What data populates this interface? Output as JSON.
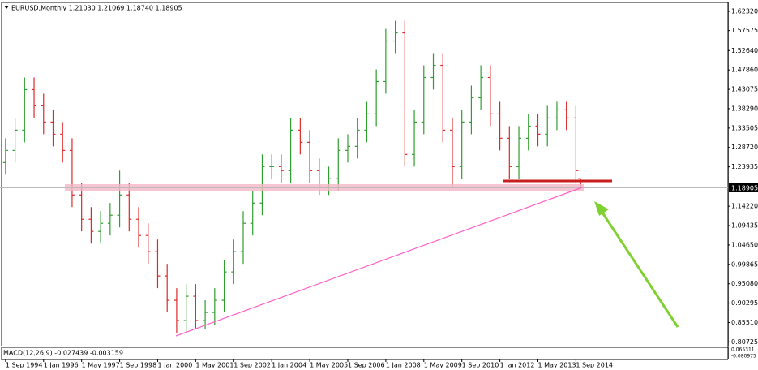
{
  "chart_data": {
    "type": "ohlc",
    "title": "EURUSD,Monthly  1.21030 1.21069 1.18740 1.18905",
    "x": [
      0,
      4,
      8,
      12,
      16,
      20,
      24,
      28,
      32,
      36,
      40,
      44,
      48,
      52,
      56,
      60,
      64,
      68,
      72,
      76,
      80,
      84,
      88,
      92,
      96,
      100,
      104,
      108,
      112,
      116,
      120,
      124,
      128,
      132,
      136,
      140,
      144,
      148,
      152,
      156,
      160,
      164,
      168,
      172,
      176,
      180,
      184,
      188,
      192,
      196,
      200,
      204,
      208,
      212,
      216,
      220,
      224,
      228,
      232,
      236,
      240,
      242
    ],
    "open": [
      1.25,
      1.28,
      1.33,
      1.43,
      1.39,
      1.35,
      1.32,
      1.28,
      1.17,
      1.11,
      1.08,
      1.1,
      1.12,
      1.17,
      1.11,
      1.07,
      1.03,
      0.97,
      0.91,
      0.86,
      0.92,
      0.86,
      0.88,
      0.91,
      0.98,
      1.03,
      1.1,
      1.15,
      1.24,
      1.24,
      1.23,
      1.33,
      1.3,
      1.23,
      1.19,
      1.21,
      1.28,
      1.29,
      1.33,
      1.37,
      1.45,
      1.55,
      1.57,
      1.27,
      1.35,
      1.46,
      1.49,
      1.33,
      1.24,
      1.35,
      1.41,
      1.46,
      1.37,
      1.31,
      1.24,
      1.31,
      1.34,
      1.32,
      1.36,
      1.38,
      1.36,
      1.2103
    ],
    "high": [
      1.31,
      1.36,
      1.46,
      1.46,
      1.42,
      1.38,
      1.35,
      1.31,
      1.2,
      1.14,
      1.13,
      1.15,
      1.23,
      1.2,
      1.14,
      1.1,
      1.06,
      1.0,
      0.94,
      0.95,
      0.95,
      0.91,
      0.94,
      1.01,
      1.06,
      1.13,
      1.18,
      1.27,
      1.27,
      1.27,
      1.36,
      1.36,
      1.33,
      1.26,
      1.24,
      1.31,
      1.32,
      1.36,
      1.4,
      1.48,
      1.58,
      1.6,
      1.6,
      1.38,
      1.49,
      1.52,
      1.52,
      1.36,
      1.38,
      1.44,
      1.49,
      1.49,
      1.4,
      1.34,
      1.34,
      1.37,
      1.37,
      1.39,
      1.4,
      1.4,
      1.39,
      1.21069
    ],
    "low": [
      1.22,
      1.25,
      1.3,
      1.36,
      1.32,
      1.29,
      1.25,
      1.14,
      1.08,
      1.05,
      1.05,
      1.07,
      1.09,
      1.08,
      1.04,
      1.0,
      0.94,
      0.88,
      0.83,
      0.83,
      0.84,
      0.84,
      0.85,
      0.88,
      0.95,
      1.0,
      1.07,
      1.12,
      1.21,
      1.2,
      1.2,
      1.27,
      1.2,
      1.17,
      1.17,
      1.18,
      1.25,
      1.26,
      1.3,
      1.34,
      1.42,
      1.52,
      1.24,
      1.24,
      1.32,
      1.43,
      1.3,
      1.19,
      1.21,
      1.32,
      1.38,
      1.34,
      1.28,
      1.21,
      1.21,
      1.28,
      1.29,
      1.29,
      1.33,
      1.33,
      1.2,
      1.1874
    ],
    "close": [
      1.28,
      1.33,
      1.43,
      1.39,
      1.35,
      1.32,
      1.28,
      1.17,
      1.11,
      1.08,
      1.1,
      1.12,
      1.17,
      1.11,
      1.07,
      1.03,
      0.97,
      0.91,
      0.86,
      0.92,
      0.86,
      0.88,
      0.91,
      0.98,
      1.03,
      1.1,
      1.15,
      1.24,
      1.24,
      1.23,
      1.33,
      1.3,
      1.23,
      1.19,
      1.21,
      1.28,
      1.29,
      1.33,
      1.37,
      1.45,
      1.55,
      1.57,
      1.27,
      1.35,
      1.46,
      1.49,
      1.33,
      1.24,
      1.35,
      1.41,
      1.46,
      1.37,
      1.31,
      1.24,
      1.31,
      1.34,
      1.32,
      1.36,
      1.38,
      1.36,
      1.23,
      1.18905
    ],
    "up_color": "#2e9e2e",
    "down_color": "#e02828",
    "xlim": [
      -2,
      304
    ],
    "xticks": [
      {
        "value": 0,
        "label": "1 Sep 1994"
      },
      {
        "value": 16,
        "label": "1 Jan 1996"
      },
      {
        "value": 32,
        "label": "1 May 1997"
      },
      {
        "value": 48,
        "label": "1 Sep 1998"
      },
      {
        "value": 64,
        "label": "1 Jan 2000"
      },
      {
        "value": 80,
        "label": "1 May 2001"
      },
      {
        "value": 96,
        "label": "1 Sep 2002"
      },
      {
        "value": 112,
        "label": "1 Jan 2004"
      },
      {
        "value": 128,
        "label": "1 May 2005"
      },
      {
        "value": 144,
        "label": "1 Sep 2006"
      },
      {
        "value": 160,
        "label": "1 Jan 2008"
      },
      {
        "value": 176,
        "label": "1 May 2009"
      },
      {
        "value": 192,
        "label": "1 Sep 2010"
      },
      {
        "value": 208,
        "label": "1 Jan 2012"
      },
      {
        "value": 224,
        "label": "1 May 2013"
      },
      {
        "value": 240,
        "label": "1 Sep 2014"
      }
    ],
    "ylim": [
      0.8,
      1.6432
    ],
    "yticks": [
      {
        "value": 1.6232,
        "label": "1.62320"
      },
      1.57575,
      {
        "value": 1.5264,
        "label": "1.52640"
      },
      {
        "value": 1.4786,
        "label": "1.47860"
      },
      1.43075,
      {
        "value": 1.3829,
        "label": "1.38290"
      },
      1.33505,
      {
        "value": 1.2872,
        "label": "1.28720"
      },
      1.23935,
      {
        "value": 1.1422,
        "label": "1.14220"
      },
      1.09435,
      {
        "value": 1.0465,
        "label": "1.04650"
      },
      0.99865,
      {
        "value": 0.9508,
        "label": "0.95080"
      },
      0.90295,
      {
        "value": 0.8551,
        "label": "0.85510"
      },
      0.80725
    ],
    "grid": false
  },
  "macd": {
    "label": "MACD(12,26,9) -0.027439 -0.003159",
    "scale_top": "0.065311",
    "scale_bottom": "-0.080975"
  }
}
